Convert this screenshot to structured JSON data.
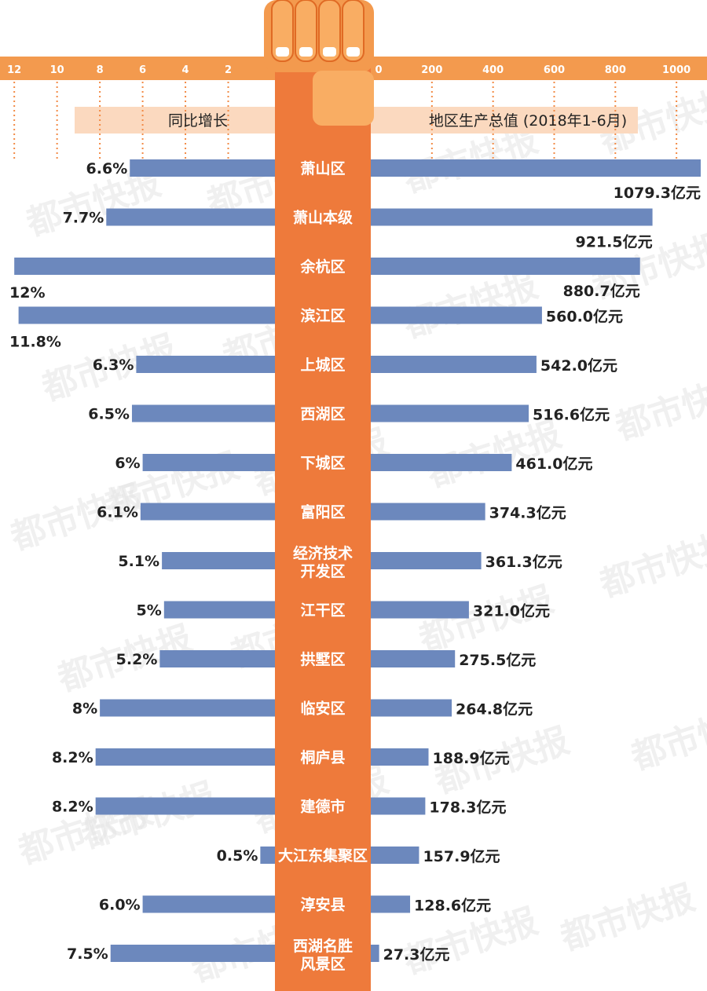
{
  "colors": {
    "bar": "#6c88bd",
    "center": "#ee7a3b",
    "band": "#f39a4e",
    "band_light": "#fbd9bf",
    "gridline": "#f28a45",
    "fist": "#f9ad63",
    "watermark": "#e3e3e3"
  },
  "watermark": "都市快报",
  "chart_data": {
    "type": "bar",
    "orientation": "horizontal-butterfly",
    "left_axis": {
      "title": "同比增长",
      "ticks": [
        12,
        10,
        8,
        6,
        4,
        2
      ],
      "range": [
        0,
        12.3
      ]
    },
    "right_axis": {
      "title": "地区生产总值 (2018年1-6月)",
      "ticks": [
        0,
        200,
        400,
        600,
        800,
        1000
      ],
      "range": [
        0,
        1079.3
      ]
    },
    "rows": [
      {
        "region": [
          "萧山区"
        ],
        "growth": 6.6,
        "growth_label": "6.6%",
        "gdp": 1079.3,
        "gdp_label": "1079.3亿元"
      },
      {
        "region": [
          "萧山本级"
        ],
        "growth": 7.7,
        "growth_label": "7.7%",
        "gdp": 921.5,
        "gdp_label": "921.5亿元"
      },
      {
        "region": [
          "余杭区"
        ],
        "growth": 12,
        "growth_label": "12%",
        "gdp": 880.7,
        "gdp_label": "880.7亿元"
      },
      {
        "region": [
          "滨江区"
        ],
        "growth": 11.8,
        "growth_label": "11.8%",
        "gdp": 560.0,
        "gdp_label": "560.0亿元"
      },
      {
        "region": [
          "上城区"
        ],
        "growth": 6.3,
        "growth_label": "6.3%",
        "gdp": 542.0,
        "gdp_label": "542.0亿元"
      },
      {
        "region": [
          "西湖区"
        ],
        "growth": 6.5,
        "growth_label": "6.5%",
        "gdp": 516.6,
        "gdp_label": "516.6亿元"
      },
      {
        "region": [
          "下城区"
        ],
        "growth": 6,
        "growth_label": "6%",
        "gdp": 461.0,
        "gdp_label": "461.0亿元"
      },
      {
        "region": [
          "富阳区"
        ],
        "growth": 6.1,
        "growth_label": "6.1%",
        "gdp": 374.3,
        "gdp_label": "374.3亿元"
      },
      {
        "region": [
          "经济技术",
          "开发区"
        ],
        "growth": 5.1,
        "growth_label": "5.1%",
        "gdp": 361.3,
        "gdp_label": "361.3亿元"
      },
      {
        "region": [
          "江干区"
        ],
        "growth": 5,
        "growth_label": "5%",
        "gdp": 321.0,
        "gdp_label": "321.0亿元"
      },
      {
        "region": [
          "拱墅区"
        ],
        "growth": 5.2,
        "growth_label": "5.2%",
        "gdp": 275.5,
        "gdp_label": "275.5亿元"
      },
      {
        "region": [
          "临安区"
        ],
        "growth": 8,
        "growth_label": "8%",
        "gdp": 264.8,
        "gdp_label": "264.8亿元"
      },
      {
        "region": [
          "桐庐县"
        ],
        "growth": 8.2,
        "growth_label": "8.2%",
        "gdp": 188.9,
        "gdp_label": "188.9亿元"
      },
      {
        "region": [
          "建德市"
        ],
        "growth": 8.2,
        "growth_label": "8.2%",
        "gdp": 178.3,
        "gdp_label": "178.3亿元"
      },
      {
        "region": [
          "大江东集聚区"
        ],
        "growth": 0.5,
        "growth_label": "0.5%",
        "gdp": 157.9,
        "gdp_label": "157.9亿元"
      },
      {
        "region": [
          "淳安县"
        ],
        "growth": 6.0,
        "growth_label": "6.0%",
        "gdp": 128.6,
        "gdp_label": "128.6亿元"
      },
      {
        "region": [
          "西湖名胜",
          "风景区"
        ],
        "growth": 7.5,
        "growth_label": "7.5%",
        "gdp": 27.3,
        "gdp_label": "27.3亿元"
      }
    ]
  }
}
